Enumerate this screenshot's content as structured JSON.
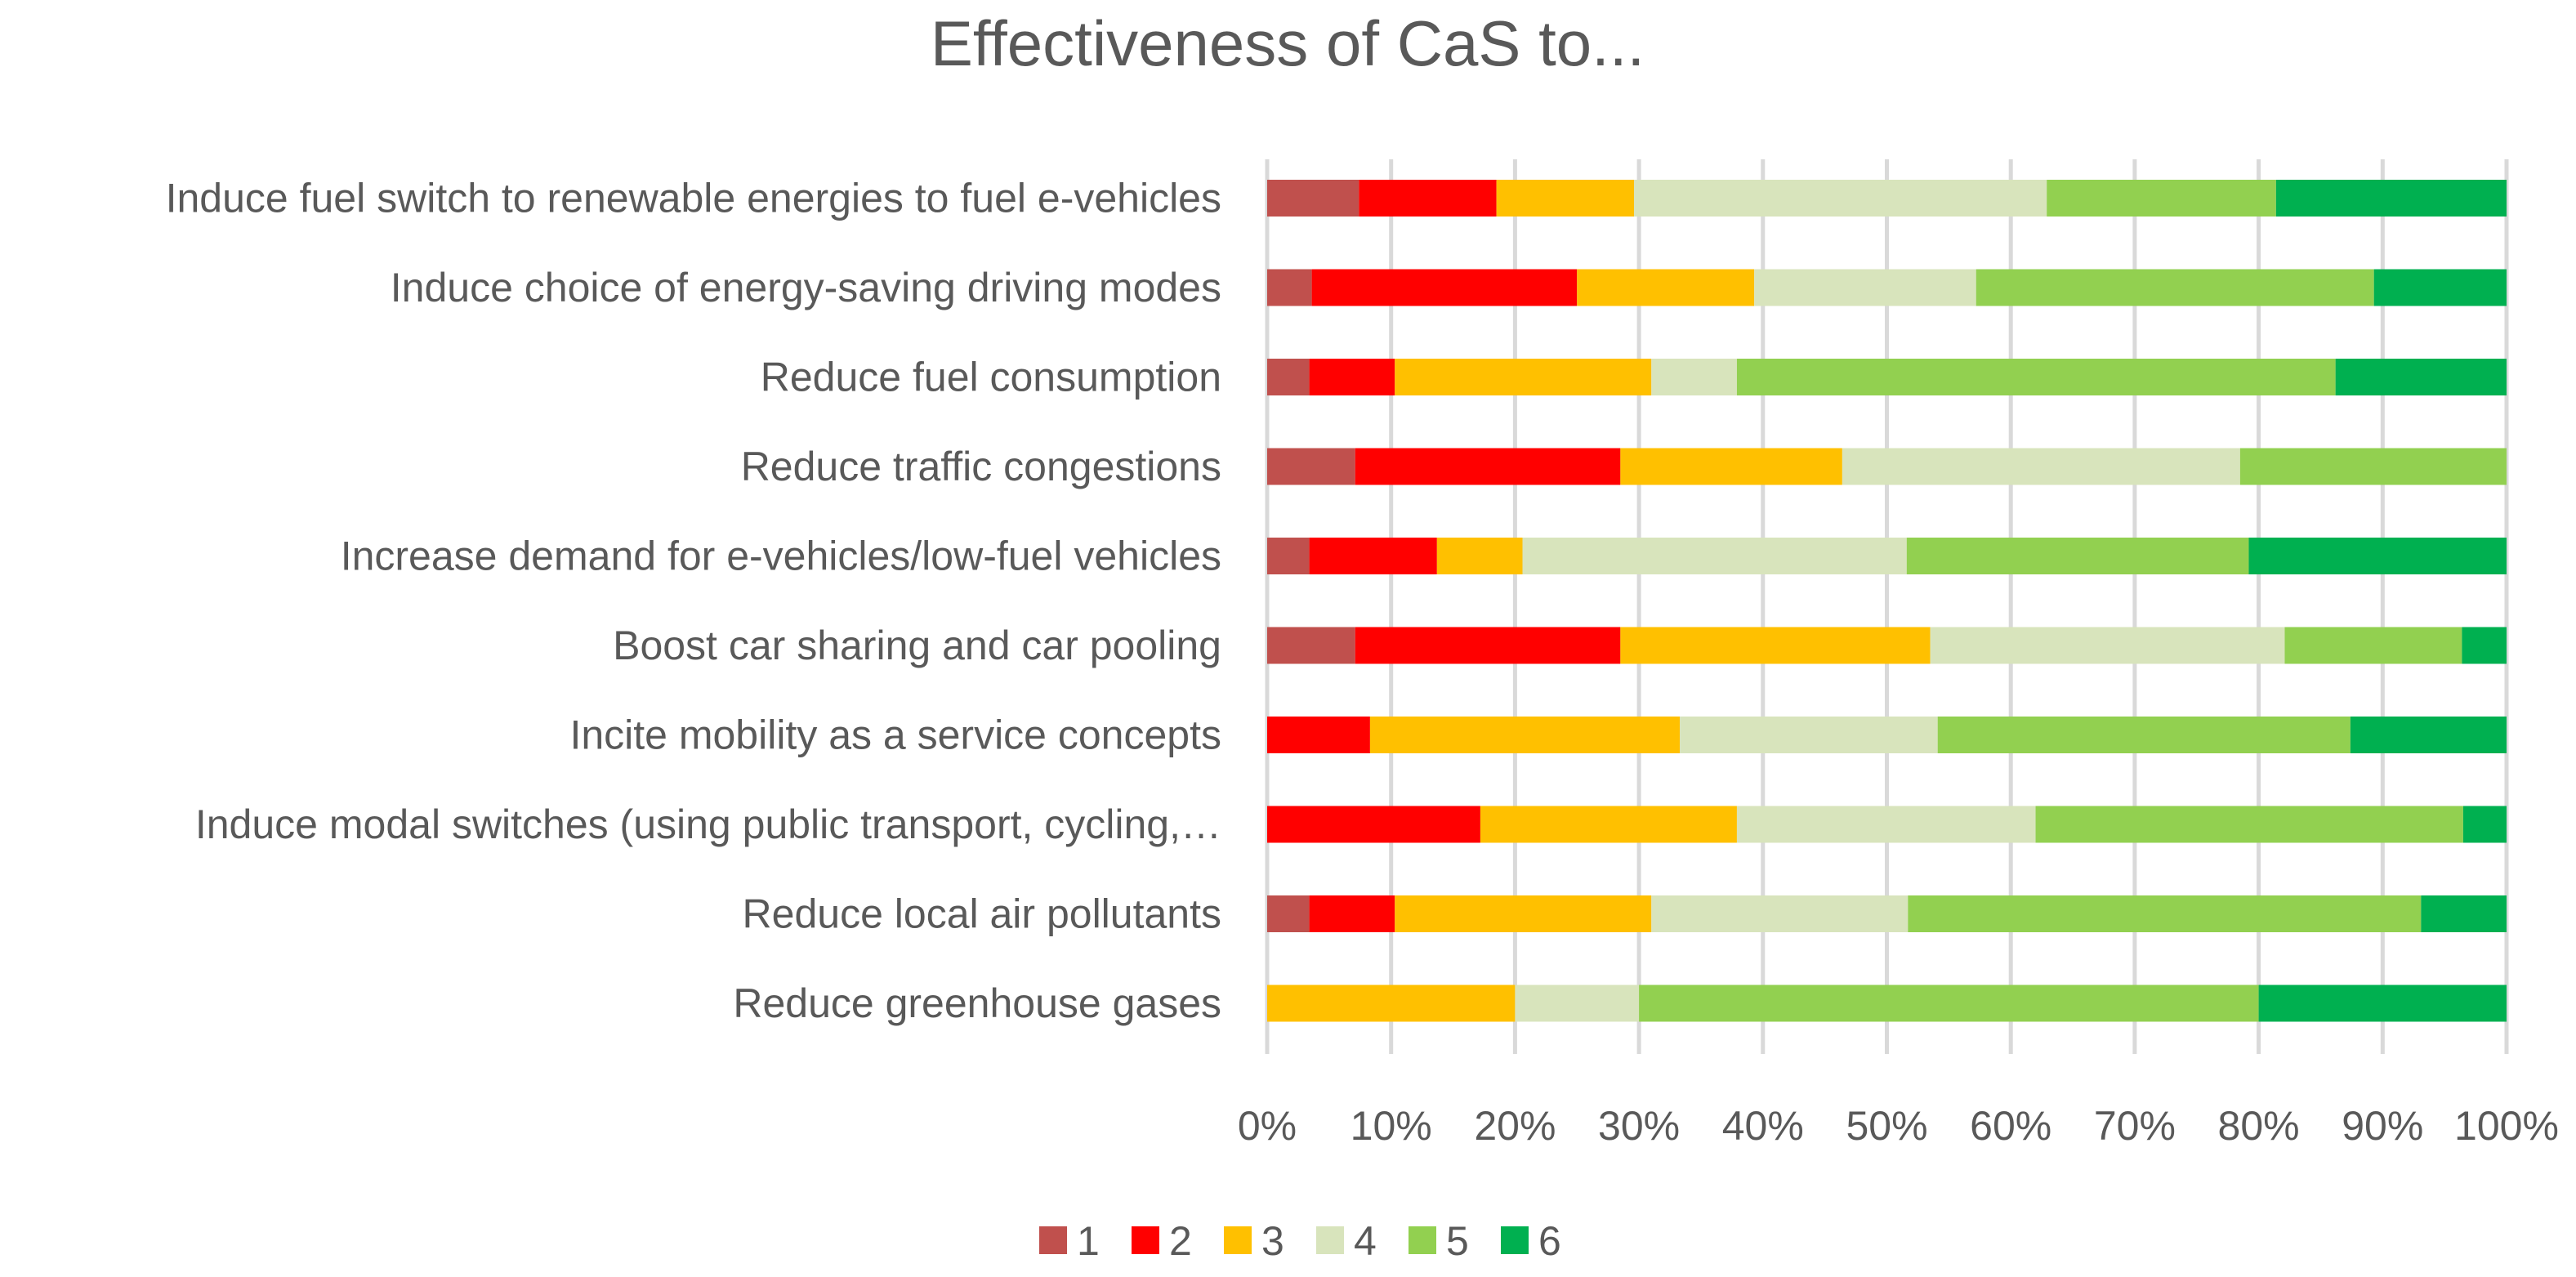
{
  "chart_data": {
    "type": "bar",
    "orientation": "horizontal",
    "stacked": "percent",
    "title": "Effectiveness of CaS to...",
    "xlabel": "",
    "ylabel": "",
    "xlim": [
      0,
      100
    ],
    "x_ticks": [
      "0%",
      "10%",
      "20%",
      "30%",
      "40%",
      "50%",
      "60%",
      "70%",
      "80%",
      "90%",
      "100%"
    ],
    "grid": true,
    "legend_position": "bottom",
    "categories": [
      "Induce fuel switch to renewable energies to fuel e-vehicles",
      "Induce choice of energy-saving driving modes",
      "Reduce fuel consumption",
      "Reduce traffic congestions",
      "Increase demand for e-vehicles/low-fuel vehicles",
      "Boost car sharing and car pooling",
      "Incite mobility as a service concepts",
      "Induce modal switches (using public transport, cycling,…",
      "Reduce local air pollutants",
      "Reduce greenhouse gases"
    ],
    "series": [
      {
        "name": "1",
        "color": "#C0504D",
        "values": [
          7.4,
          3.6,
          3.4,
          7.1,
          3.4,
          7.1,
          0,
          0,
          3.4,
          0
        ]
      },
      {
        "name": "2",
        "color": "#FF0000",
        "values": [
          11.1,
          21.4,
          6.9,
          21.4,
          10.3,
          21.4,
          8.3,
          17.2,
          6.9,
          0
        ]
      },
      {
        "name": "3",
        "color": "#FFC000",
        "values": [
          11.1,
          14.3,
          20.7,
          17.9,
          6.9,
          25.0,
          25.0,
          20.7,
          20.7,
          20.0
        ]
      },
      {
        "name": "4",
        "color": "#D8E4BC",
        "values": [
          33.3,
          17.9,
          6.9,
          32.1,
          31.0,
          28.6,
          20.8,
          24.1,
          20.7,
          10.0
        ]
      },
      {
        "name": "5",
        "color": "#92D050",
        "values": [
          18.5,
          32.1,
          48.3,
          21.5,
          27.6,
          14.3,
          33.3,
          34.5,
          41.4,
          50.0
        ]
      },
      {
        "name": "6",
        "color": "#00B050",
        "values": [
          18.6,
          10.7,
          13.8,
          0,
          20.8,
          3.6,
          12.6,
          3.5,
          6.9,
          20.0
        ]
      }
    ]
  }
}
